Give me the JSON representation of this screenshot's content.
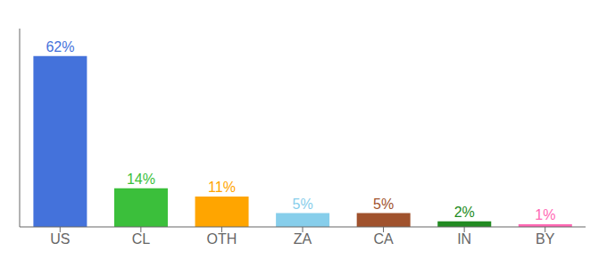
{
  "chart_data": {
    "type": "bar",
    "categories": [
      "US",
      "CL",
      "OTH",
      "ZA",
      "CA",
      "IN",
      "BY"
    ],
    "values": [
      62,
      14,
      11,
      5,
      5,
      2,
      1
    ],
    "value_labels": [
      "62%",
      "14%",
      "11%",
      "5%",
      "5%",
      "2%",
      "1%"
    ],
    "colors": [
      "#4472DB",
      "#3BBF3B",
      "#FFA500",
      "#87CEEB",
      "#A0522D",
      "#228B22",
      "#FF69B4"
    ],
    "ylim": [
      0,
      72
    ],
    "data_labels": true,
    "tick_labels": "x",
    "grid": false
  }
}
